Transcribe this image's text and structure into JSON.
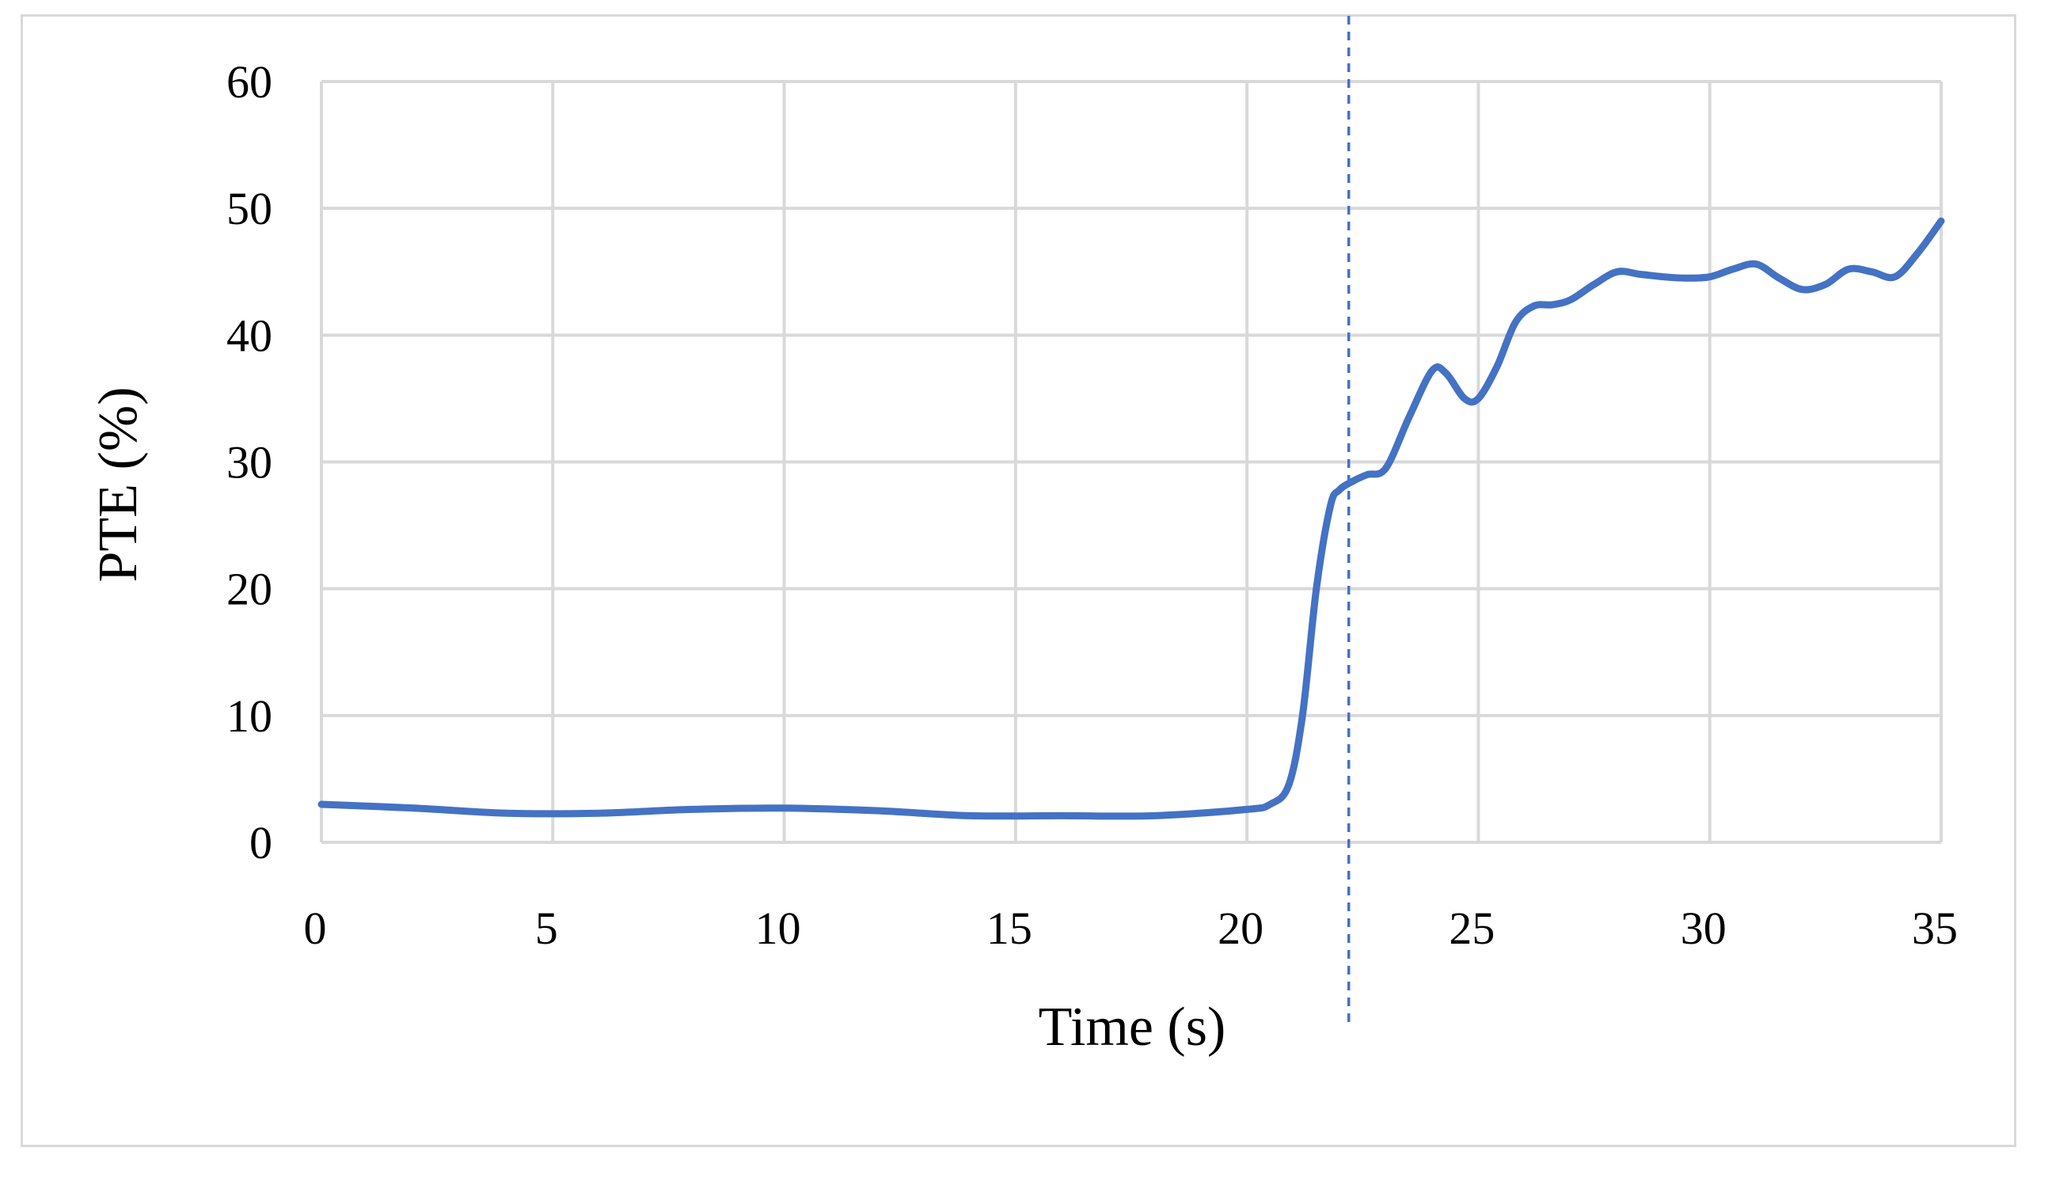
{
  "chart_data": {
    "type": "line",
    "title": "",
    "xlabel": "Time (s)",
    "ylabel": "PTE (%)",
    "xlim": [
      0,
      35
    ],
    "ylim": [
      0,
      60
    ],
    "x_ticks": [
      0,
      5,
      10,
      15,
      20,
      25,
      30,
      35
    ],
    "y_ticks": [
      0,
      10,
      20,
      30,
      40,
      50,
      60
    ],
    "grid": true,
    "legend": "none",
    "vertical_marker": {
      "x": 22.2,
      "style": "dashed",
      "color": "#4472c4"
    },
    "series": [
      {
        "color": "#4472c4",
        "x": [
          0,
          2,
          4,
          6,
          8,
          10,
          12,
          14,
          16,
          18,
          20,
          20.5,
          20.9,
          21.2,
          21.5,
          21.8,
          22.0,
          22.3,
          22.6,
          23.0,
          23.5,
          24.0,
          24.3,
          24.7,
          25.0,
          25.4,
          25.8,
          26.2,
          26.6,
          27.0,
          27.5,
          28.0,
          28.5,
          29.0,
          29.5,
          30.0,
          30.5,
          31.0,
          31.5,
          32.0,
          32.5,
          33.0,
          33.5,
          34.0,
          34.5,
          35.0
        ],
        "y": [
          3.0,
          2.7,
          2.3,
          2.3,
          2.6,
          2.7,
          2.5,
          2.1,
          2.1,
          2.1,
          2.6,
          3.0,
          4.5,
          10.0,
          20.0,
          26.5,
          27.8,
          28.5,
          29.0,
          29.5,
          33.5,
          37.2,
          37.0,
          35.0,
          35.0,
          37.5,
          41.0,
          42.3,
          42.4,
          42.8,
          44.0,
          45.0,
          44.8,
          44.6,
          44.5,
          44.6,
          45.2,
          45.6,
          44.5,
          43.6,
          44.0,
          45.2,
          45.0,
          44.6,
          46.5,
          49.0
        ]
      }
    ]
  }
}
